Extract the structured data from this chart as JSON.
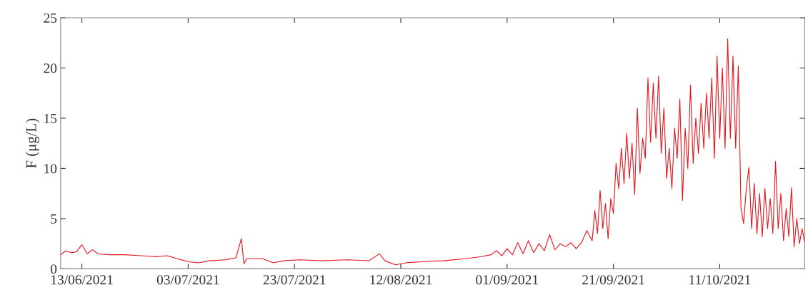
{
  "chart_data": {
    "type": "line",
    "ylabel": "F (μg/L)",
    "x": [
      "2021-06-09",
      "2021-06-10",
      "2021-06-11",
      "2021-06-12",
      "2021-06-13",
      "2021-06-14",
      "2021-06-15",
      "2021-06-16",
      "2021-06-18",
      "2021-06-21",
      "2021-06-24",
      "2021-06-27",
      "2021-06-29",
      "2021-07-01",
      "2021-07-03",
      "2021-07-05",
      "2021-07-07",
      "2021-07-10",
      "2021-07-12",
      "2021-07-13",
      "2021-07-13T12:00",
      "2021-07-14",
      "2021-07-17",
      "2021-07-19",
      "2021-07-21",
      "2021-07-24",
      "2021-07-28",
      "2021-08-02",
      "2021-08-06",
      "2021-08-08",
      "2021-08-09",
      "2021-08-11",
      "2021-08-13",
      "2021-08-16",
      "2021-08-20",
      "2021-08-24",
      "2021-08-27",
      "2021-08-29",
      "2021-08-30",
      "2021-08-31",
      "2021-09-01",
      "2021-09-02",
      "2021-09-03",
      "2021-09-04",
      "2021-09-05",
      "2021-09-06",
      "2021-09-07",
      "2021-09-08",
      "2021-09-09",
      "2021-09-10",
      "2021-09-11",
      "2021-09-12",
      "2021-09-13",
      "2021-09-14",
      "2021-09-15",
      "2021-09-16",
      "2021-09-17",
      "2021-09-17T12:00",
      "2021-09-18",
      "2021-09-18T12:00",
      "2021-09-19",
      "2021-09-19T12:00",
      "2021-09-20",
      "2021-09-20T12:00",
      "2021-09-21",
      "2021-09-21T12:00",
      "2021-09-22",
      "2021-09-22T12:00",
      "2021-09-23",
      "2021-09-23T12:00",
      "2021-09-24",
      "2021-09-24T12:00",
      "2021-09-25",
      "2021-09-25T12:00",
      "2021-09-26",
      "2021-09-26T12:00",
      "2021-09-27",
      "2021-09-27T12:00",
      "2021-09-28",
      "2021-09-28T12:00",
      "2021-09-29",
      "2021-09-29T12:00",
      "2021-09-30",
      "2021-09-30T12:00",
      "2021-10-01",
      "2021-10-01T12:00",
      "2021-10-02",
      "2021-10-02T12:00",
      "2021-10-03",
      "2021-10-03T12:00",
      "2021-10-04",
      "2021-10-04T12:00",
      "2021-10-05",
      "2021-10-05T12:00",
      "2021-10-06",
      "2021-10-06T12:00",
      "2021-10-07",
      "2021-10-07T12:00",
      "2021-10-08",
      "2021-10-08T12:00",
      "2021-10-09",
      "2021-10-09T12:00",
      "2021-10-10",
      "2021-10-10T12:00",
      "2021-10-11",
      "2021-10-11T12:00",
      "2021-10-12",
      "2021-10-12T12:00",
      "2021-10-13",
      "2021-10-13T12:00",
      "2021-10-14",
      "2021-10-14T12:00",
      "2021-10-15",
      "2021-10-15T12:00",
      "2021-10-16",
      "2021-10-16T12:00",
      "2021-10-17",
      "2021-10-17T12:00",
      "2021-10-18",
      "2021-10-18T12:00",
      "2021-10-19",
      "2021-10-19T12:00",
      "2021-10-20",
      "2021-10-20T12:00",
      "2021-10-21",
      "2021-10-21T12:00",
      "2021-10-22",
      "2021-10-22T12:00",
      "2021-10-23",
      "2021-10-23T12:00",
      "2021-10-24",
      "2021-10-24T12:00",
      "2021-10-25",
      "2021-10-25T12:00",
      "2021-10-26",
      "2021-10-26T12:00",
      "2021-10-27"
    ],
    "series": [
      {
        "color": "#e8141c",
        "values": [
          1.4,
          1.8,
          1.6,
          1.7,
          2.4,
          1.5,
          1.9,
          1.5,
          1.4,
          1.4,
          1.3,
          1.2,
          1.3,
          1.0,
          0.7,
          0.6,
          0.8,
          0.9,
          1.1,
          3.0,
          0.5,
          1.0,
          1.0,
          0.6,
          0.8,
          0.9,
          0.8,
          0.9,
          0.8,
          1.5,
          0.8,
          0.4,
          0.6,
          0.7,
          0.8,
          1.0,
          1.2,
          1.4,
          1.8,
          1.3,
          2.0,
          1.4,
          2.6,
          1.5,
          2.8,
          1.6,
          2.5,
          1.8,
          3.4,
          1.9,
          2.5,
          2.2,
          2.6,
          2.0,
          2.6,
          3.8,
          2.8,
          5.8,
          3.5,
          7.8,
          4.0,
          6.5,
          3.0,
          7.0,
          5.5,
          10.5,
          8.0,
          12.0,
          8.5,
          13.5,
          9.0,
          12.5,
          7.4,
          16.0,
          9.5,
          13.0,
          11.0,
          19.0,
          12.6,
          18.5,
          13.0,
          19.2,
          11.5,
          16.0,
          9.0,
          12.0,
          8.0,
          14.0,
          11.0,
          16.9,
          6.8,
          14.0,
          10.0,
          18.3,
          10.5,
          15.0,
          11.5,
          16.5,
          12.0,
          17.5,
          13.0,
          19.0,
          11.0,
          21.2,
          13.0,
          20.0,
          12.0,
          22.9,
          13.0,
          21.2,
          12.0,
          20.2,
          6.0,
          4.5,
          8.0,
          10.1,
          4.0,
          8.5,
          3.5,
          7.5,
          3.2,
          8.0,
          4.0,
          7.0,
          3.5,
          10.7,
          4.0,
          7.5,
          2.8,
          6.0,
          3.2,
          8.1,
          2.2,
          5.0,
          2.5,
          4.0,
          2.6
        ]
      }
    ],
    "xlim": [
      "2021-06-09",
      "2021-10-27"
    ],
    "xticks": [
      {
        "value": "2021-06-13",
        "label": "13/06/2021"
      },
      {
        "value": "2021-07-03",
        "label": "03/07/2021"
      },
      {
        "value": "2021-07-23",
        "label": "23/07/2021"
      },
      {
        "value": "2021-08-12",
        "label": "12/08/2021"
      },
      {
        "value": "2021-09-01",
        "label": "01/09/2021"
      },
      {
        "value": "2021-09-21",
        "label": "21/09/2021"
      },
      {
        "value": "2021-10-11",
        "label": "11/10/2021"
      }
    ],
    "ylim": [
      0,
      25
    ],
    "yticks": [
      0,
      5,
      10,
      15,
      20,
      25
    ],
    "grid": false
  }
}
